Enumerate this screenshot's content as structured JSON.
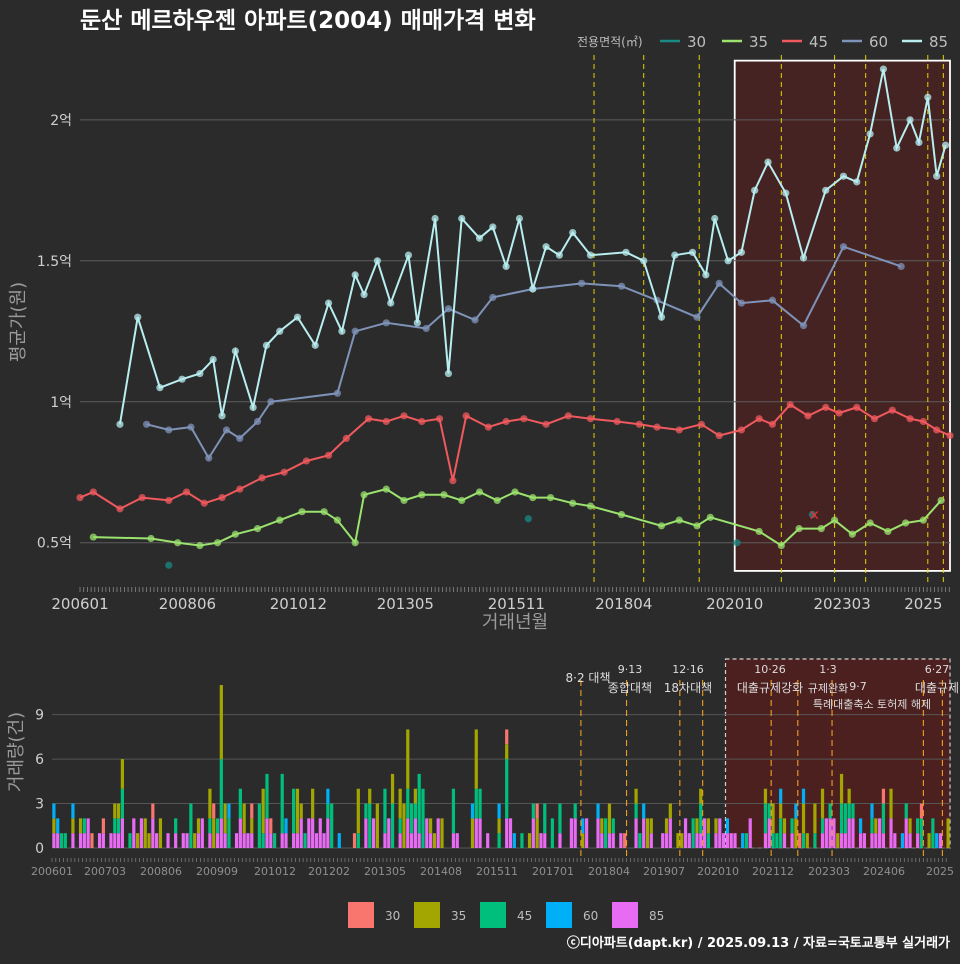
{
  "title": "둔산 메르하우젠 아파트(2004) 매매가격 변화",
  "footer": "ⓒ디아파트(dapt.kr) / 2025.09.13 / 자료=국토교통부 실거래가",
  "legend_top": {
    "title": "전용면적(㎡)",
    "entries": [
      {
        "label": "30",
        "color": "#1a8a87"
      },
      {
        "label": "35",
        "color": "#9be36e"
      },
      {
        "label": "45",
        "color": "#f0595d"
      },
      {
        "label": "60",
        "color": "#7f93b8"
      },
      {
        "label": "85",
        "color": "#b8eef0"
      }
    ]
  },
  "legend_bottom": {
    "entries": [
      {
        "label": "30",
        "color": "#f8766d"
      },
      {
        "label": "35",
        "color": "#a3a500"
      },
      {
        "label": "45",
        "color": "#00bf7d"
      },
      {
        "label": "60",
        "color": "#00b0f6"
      },
      {
        "label": "85",
        "color": "#e76bf3"
      }
    ]
  },
  "chart_data": [
    {
      "type": "line",
      "title": "둔산 메르하우젠 아파트(2004) 매매가격 변화",
      "xlabel": "거래년월",
      "ylabel": "평균가(원)",
      "x_range": [
        2006.0,
        2025.6
      ],
      "ylim": [
        3500,
        22300
      ],
      "y_ticks": [
        {
          "v": 5000,
          "label": "0.5억"
        },
        {
          "v": 10000,
          "label": "1억"
        },
        {
          "v": 15000,
          "label": "1.5억"
        },
        {
          "v": 20000,
          "label": "2억"
        }
      ],
      "x_ticks": [
        {
          "v": 2006.0,
          "label": "200601"
        },
        {
          "v": 2008.42,
          "label": "200806"
        },
        {
          "v": 2010.92,
          "label": "201012"
        },
        {
          "v": 2013.33,
          "label": "201305"
        },
        {
          "v": 2015.83,
          "label": "201511"
        },
        {
          "v": 2018.25,
          "label": "201804"
        },
        {
          "v": 2020.75,
          "label": "202010"
        },
        {
          "v": 2023.17,
          "label": "202303"
        },
        {
          "v": 2025.0,
          "label": "2025"
        }
      ],
      "policy_lines": [
        2017.58,
        2018.7,
        2019.95,
        2021.8,
        2023.0,
        2023.7,
        2025.1,
        2025.45
      ],
      "highlight_range": [
        2020.75,
        2025.6
      ],
      "series": [
        {
          "name": "85",
          "color": "#b8eef0",
          "points": [
            [
              2006.9,
              9200
            ],
            [
              2007.3,
              13000
            ],
            [
              2007.8,
              10500
            ],
            [
              2008.3,
              10800
            ],
            [
              2008.7,
              11000
            ],
            [
              2009.0,
              11500
            ],
            [
              2009.2,
              9500
            ],
            [
              2009.5,
              11800
            ],
            [
              2009.9,
              9800
            ],
            [
              2010.2,
              12000
            ],
            [
              2010.5,
              12500
            ],
            [
              2010.9,
              13000
            ],
            [
              2011.3,
              12000
            ],
            [
              2011.6,
              13500
            ],
            [
              2011.9,
              12500
            ],
            [
              2012.2,
              14500
            ],
            [
              2012.4,
              13800
            ],
            [
              2012.7,
              15000
            ],
            [
              2013.0,
              13500
            ],
            [
              2013.4,
              15200
            ],
            [
              2013.6,
              12800
            ],
            [
              2014.0,
              16500
            ],
            [
              2014.3,
              11000
            ],
            [
              2014.6,
              16500
            ],
            [
              2015.0,
              15800
            ],
            [
              2015.3,
              16200
            ],
            [
              2015.6,
              14800
            ],
            [
              2015.9,
              16500
            ],
            [
              2016.2,
              14000
            ],
            [
              2016.5,
              15500
            ],
            [
              2016.8,
              15200
            ],
            [
              2017.1,
              16000
            ],
            [
              2017.5,
              15200
            ],
            [
              2018.3,
              15300
            ],
            [
              2018.7,
              15000
            ],
            [
              2019.1,
              13000
            ],
            [
              2019.4,
              15200
            ],
            [
              2019.8,
              15300
            ],
            [
              2020.1,
              14500
            ],
            [
              2020.3,
              16500
            ],
            [
              2020.6,
              15000
            ],
            [
              2020.9,
              15300
            ],
            [
              2021.2,
              17500
            ],
            [
              2021.5,
              18500
            ],
            [
              2021.9,
              17400
            ],
            [
              2022.3,
              15100
            ],
            [
              2022.8,
              17500
            ],
            [
              2023.2,
              18000
            ],
            [
              2023.5,
              17800
            ],
            [
              2023.8,
              19500
            ],
            [
              2024.1,
              21800
            ],
            [
              2024.4,
              19000
            ],
            [
              2024.7,
              20000
            ],
            [
              2024.9,
              19200
            ],
            [
              2025.1,
              20800
            ],
            [
              2025.3,
              18000
            ],
            [
              2025.5,
              19100
            ]
          ]
        },
        {
          "name": "60",
          "color": "#7f93b8",
          "points": [
            [
              2007.5,
              9200
            ],
            [
              2008.0,
              9000
            ],
            [
              2008.5,
              9100
            ],
            [
              2008.9,
              8000
            ],
            [
              2009.3,
              9000
            ],
            [
              2009.6,
              8700
            ],
            [
              2010.0,
              9300
            ],
            [
              2010.3,
              10000
            ],
            [
              2011.8,
              10300
            ],
            [
              2012.2,
              12500
            ],
            [
              2012.9,
              12800
            ],
            [
              2013.8,
              12600
            ],
            [
              2014.3,
              13300
            ],
            [
              2014.9,
              12900
            ],
            [
              2015.3,
              13700
            ],
            [
              2016.2,
              14000
            ],
            [
              2017.3,
              14200
            ],
            [
              2018.2,
              14100
            ],
            [
              2019.0,
              13600
            ],
            [
              2019.9,
              13000
            ],
            [
              2020.4,
              14200
            ],
            [
              2020.9,
              13500
            ],
            [
              2021.6,
              13600
            ],
            [
              2022.3,
              12700
            ],
            [
              2023.2,
              15500
            ],
            [
              2024.5,
              14800
            ]
          ]
        },
        {
          "name": "45",
          "color": "#f0595d",
          "points": [
            [
              2006.0,
              6600
            ],
            [
              2006.3,
              6800
            ],
            [
              2006.9,
              6200
            ],
            [
              2007.4,
              6600
            ],
            [
              2008.0,
              6500
            ],
            [
              2008.4,
              6800
            ],
            [
              2008.8,
              6400
            ],
            [
              2009.2,
              6600
            ],
            [
              2009.6,
              6900
            ],
            [
              2010.1,
              7300
            ],
            [
              2010.6,
              7500
            ],
            [
              2011.1,
              7900
            ],
            [
              2011.6,
              8100
            ],
            [
              2012.0,
              8700
            ],
            [
              2012.5,
              9400
            ],
            [
              2012.9,
              9300
            ],
            [
              2013.3,
              9500
            ],
            [
              2013.7,
              9300
            ],
            [
              2014.1,
              9400
            ],
            [
              2014.4,
              7200
            ],
            [
              2014.7,
              9500
            ],
            [
              2015.2,
              9100
            ],
            [
              2015.6,
              9300
            ],
            [
              2016.0,
              9400
            ],
            [
              2016.5,
              9200
            ],
            [
              2017.0,
              9500
            ],
            [
              2017.5,
              9400
            ],
            [
              2018.1,
              9300
            ],
            [
              2018.6,
              9200
            ],
            [
              2019.0,
              9100
            ],
            [
              2019.5,
              9000
            ],
            [
              2020.0,
              9200
            ],
            [
              2020.4,
              8800
            ],
            [
              2020.9,
              9000
            ],
            [
              2021.3,
              9400
            ],
            [
              2021.6,
              9200
            ],
            [
              2022.0,
              9900
            ],
            [
              2022.4,
              9500
            ],
            [
              2022.8,
              9800
            ],
            [
              2023.1,
              9600
            ],
            [
              2023.5,
              9800
            ],
            [
              2023.9,
              9400
            ],
            [
              2024.3,
              9700
            ],
            [
              2024.7,
              9400
            ],
            [
              2025.0,
              9300
            ],
            [
              2025.3,
              9000
            ],
            [
              2025.6,
              8800
            ]
          ]
        },
        {
          "name": "35",
          "color": "#9be36e",
          "points": [
            [
              2006.3,
              5200
            ],
            [
              2007.6,
              5150
            ],
            [
              2008.2,
              5000
            ],
            [
              2008.7,
              4900
            ],
            [
              2009.1,
              5000
            ],
            [
              2009.5,
              5300
            ],
            [
              2010.0,
              5500
            ],
            [
              2010.5,
              5800
            ],
            [
              2011.0,
              6100
            ],
            [
              2011.5,
              6100
            ],
            [
              2011.8,
              5800
            ],
            [
              2012.2,
              5000
            ],
            [
              2012.4,
              6700
            ],
            [
              2012.9,
              6900
            ],
            [
              2013.3,
              6500
            ],
            [
              2013.7,
              6700
            ],
            [
              2014.2,
              6700
            ],
            [
              2014.6,
              6500
            ],
            [
              2015.0,
              6800
            ],
            [
              2015.4,
              6500
            ],
            [
              2015.8,
              6800
            ],
            [
              2016.2,
              6600
            ],
            [
              2016.6,
              6600
            ],
            [
              2017.1,
              6400
            ],
            [
              2017.5,
              6300
            ],
            [
              2018.2,
              6000
            ],
            [
              2019.1,
              5600
            ],
            [
              2019.5,
              5800
            ],
            [
              2019.9,
              5600
            ],
            [
              2020.2,
              5900
            ],
            [
              2021.3,
              5400
            ],
            [
              2021.8,
              4900
            ],
            [
              2022.2,
              5500
            ],
            [
              2022.7,
              5500
            ],
            [
              2023.0,
              5800
            ],
            [
              2023.4,
              5300
            ],
            [
              2023.8,
              5700
            ],
            [
              2024.2,
              5400
            ],
            [
              2024.6,
              5700
            ],
            [
              2025.0,
              5800
            ],
            [
              2025.4,
              6500
            ]
          ]
        },
        {
          "name": "30",
          "color": "#1a8a87",
          "points": [
            [
              2008.0,
              4200
            ],
            [
              2016.1,
              5850
            ],
            [
              2020.8,
              5000
            ],
            [
              2022.5,
              6000
            ]
          ]
        }
      ]
    },
    {
      "type": "bar",
      "ylabel": "거래량(건)",
      "ylim": [
        0,
        11
      ],
      "y_ticks": [
        0,
        3,
        6,
        9
      ],
      "x_ticks": [
        "200601",
        "200703",
        "200806",
        "200909",
        "201012",
        "201202",
        "201305",
        "201408",
        "201511",
        "201701",
        "201804",
        "201907",
        "202010",
        "202112",
        "202303",
        "202406",
        "2025"
      ],
      "stacked": true,
      "peak_month_total": 11,
      "policy_annotations": [
        {
          "date": "8·2",
          "text": "대책"
        },
        {
          "date": "9·13",
          "text": "종합대책"
        },
        {
          "date": "12·16",
          "text": "18차대책"
        },
        {
          "date": "10·26",
          "text": "대출규제강화"
        },
        {
          "date": "1·3",
          "text": "규제완화"
        },
        {
          "date": "9·7",
          "text": "특례대출축소 토허제 해제"
        },
        {
          "date": "6·27",
          "text": "대출규제"
        }
      ]
    }
  ]
}
